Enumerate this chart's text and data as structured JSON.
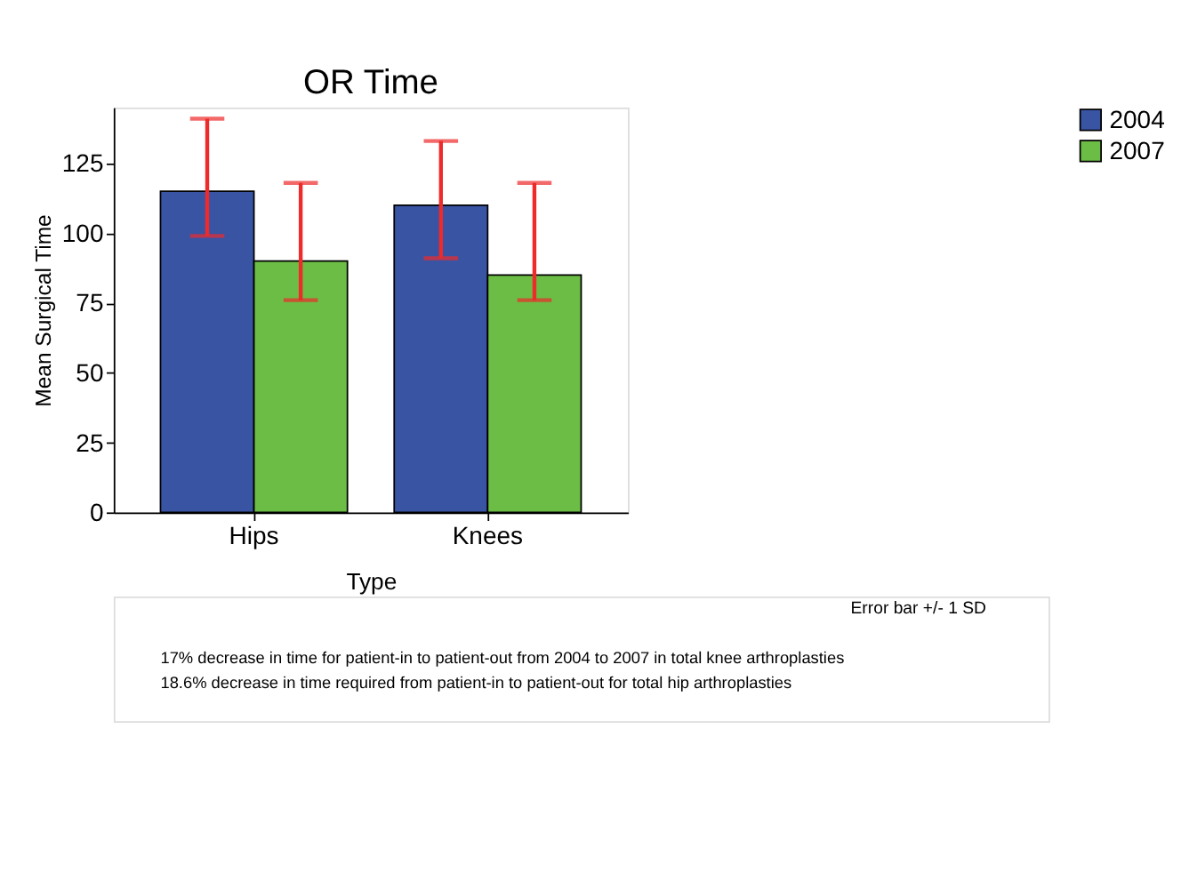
{
  "chart_data": {
    "type": "bar",
    "title": "OR Time",
    "xlabel": "Type",
    "ylabel": "Mean Surgical Time",
    "categories": [
      "Hips",
      "Knees"
    ],
    "series": [
      {
        "name": "2004",
        "color": "#3a54a4",
        "values": [
          115,
          110
        ],
        "errors": [
          [
            99,
            141
          ],
          [
            91,
            133
          ]
        ]
      },
      {
        "name": "2007",
        "color": "#6cbd45",
        "values": [
          90,
          85
        ],
        "errors": [
          [
            76,
            118
          ],
          [
            76,
            118
          ]
        ]
      }
    ],
    "ylim": [
      0,
      145
    ],
    "yticks": [
      0,
      25,
      50,
      75,
      100,
      125
    ],
    "grid": false,
    "legend": "right",
    "annotations": [
      "Error bar +/- 1 SD",
      "17% decrease in time for patient-in to patient-out from 2004 to 2007 in total knee arthroplasties",
      "18.6% decrease in time required from patient-in to patient-out for total hip arthroplasties"
    ]
  }
}
